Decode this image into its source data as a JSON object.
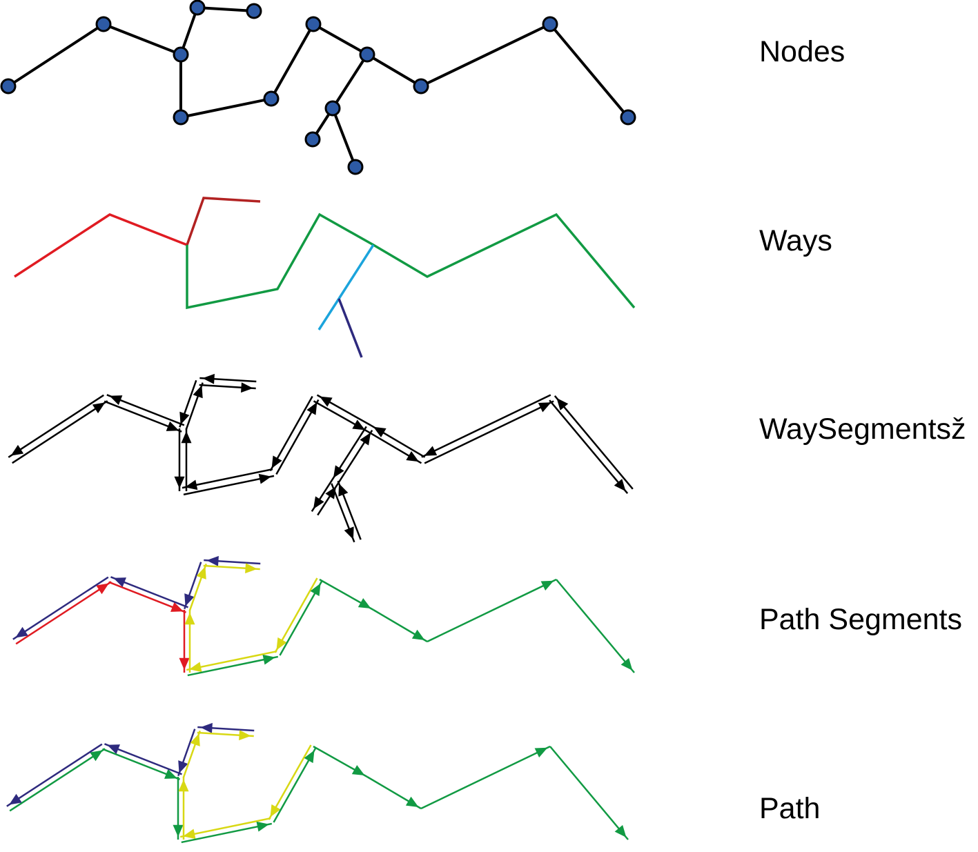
{
  "rows": [
    {
      "label": "Nodes"
    },
    {
      "label": "Ways"
    },
    {
      "label": "WaySegmentsž"
    },
    {
      "label": "Path Segments"
    },
    {
      "label": "Path"
    }
  ],
  "colors": {
    "edge": "#000000",
    "node_fill": "#2d5aa5",
    "way_red": "#e01b22",
    "way_darkred": "#b22222",
    "way_green": "#119a43",
    "way_cyan": "#1ba4dc",
    "way_navy": "#2e2a7e",
    "yellow": "#d8d814"
  },
  "icons": {
    "node": "circle-node-icon",
    "direction": "arrowhead-icon"
  }
}
